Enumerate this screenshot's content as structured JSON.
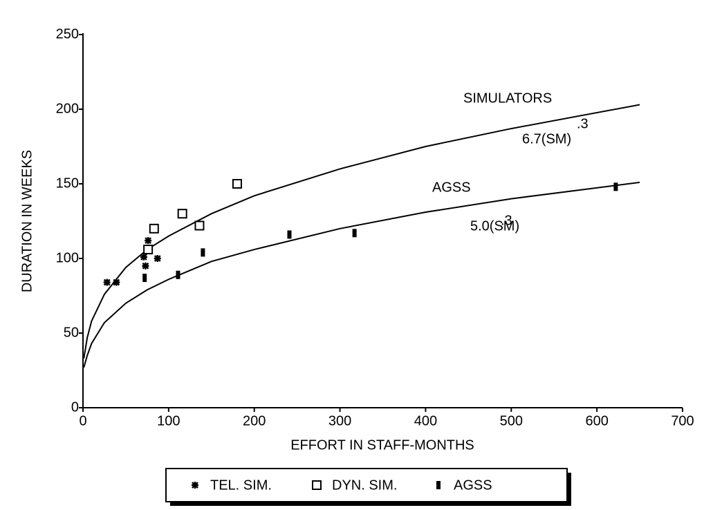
{
  "chart_data": {
    "type": "scatter",
    "xlabel": "EFFORT IN STAFF-MONTHS",
    "ylabel": "DURATION IN WEEKS",
    "xlim": [
      0,
      700
    ],
    "xticks": [
      0,
      100,
      200,
      300,
      400,
      500,
      600,
      700
    ],
    "ylim": [
      0,
      250
    ],
    "yticks": [
      0,
      50,
      100,
      150,
      200,
      250
    ],
    "series": [
      {
        "name": "TEL. SIM.",
        "color": "#000000",
        "marker": "asterisk",
        "x": [
          28,
          39,
          71,
          73,
          76,
          87
        ],
        "values": [
          84,
          84,
          101,
          95,
          112,
          100
        ]
      },
      {
        "name": "DYN. SIM.",
        "color": "#000000",
        "marker": "square",
        "x": [
          76,
          83,
          116,
          136,
          180
        ],
        "values": [
          106,
          120,
          130,
          122,
          150
        ]
      },
      {
        "name": "AGSS",
        "color": "#000000",
        "marker": "bar",
        "x": [
          72,
          111,
          140,
          241,
          317,
          622
        ],
        "values": [
          87,
          89,
          104,
          116,
          117,
          148
        ]
      }
    ],
    "curves": [
      {
        "color": "#000000",
        "x": [
          1,
          5,
          10,
          25,
          50,
          75,
          100,
          150,
          200,
          300,
          400,
          500,
          650
        ],
        "values": [
          33,
          47,
          58,
          76,
          94,
          106,
          115,
          130,
          142,
          160,
          175,
          187,
          203
        ]
      },
      {
        "color": "#000000",
        "x": [
          1,
          5,
          10,
          25,
          50,
          75,
          100,
          150,
          200,
          300,
          400,
          500,
          650
        ],
        "values": [
          27,
          35,
          43,
          57,
          70,
          79,
          86,
          98,
          106,
          120,
          131,
          140,
          151
        ]
      }
    ],
    "annotations": [
      "SIMULATORS",
      "6.7(SM)",
      ".3",
      "AGSS",
      "5.0(SM)",
      ".3"
    ]
  }
}
